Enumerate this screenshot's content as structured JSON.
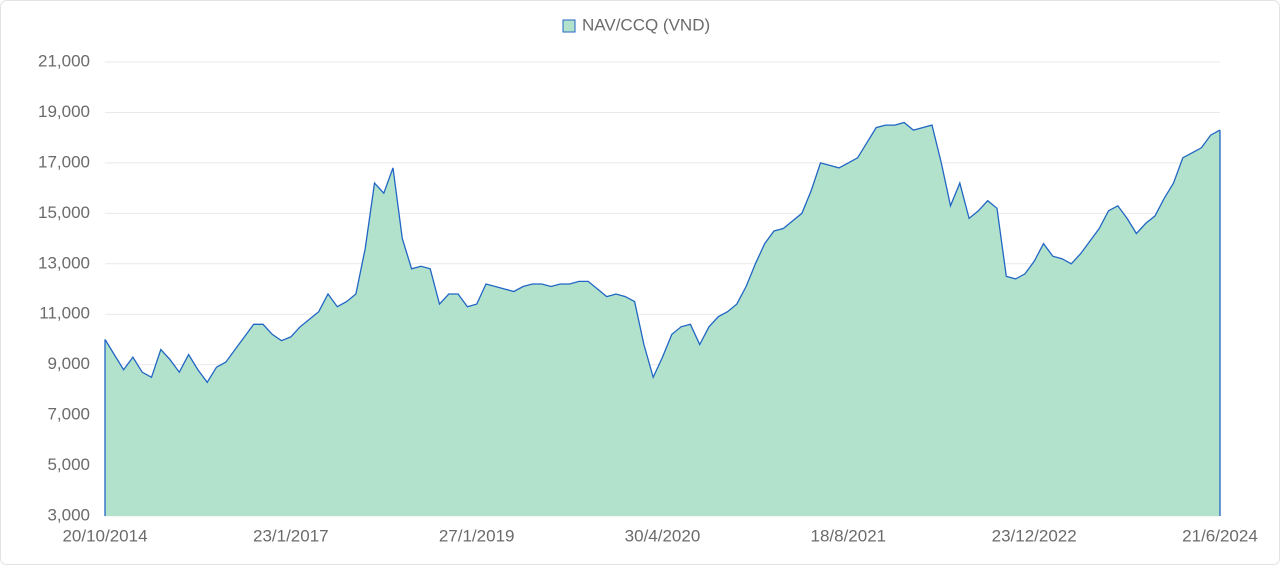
{
  "chart_data": {
    "type": "area",
    "categories": [
      "20/10/2014",
      null,
      null,
      null,
      null,
      null,
      null,
      null,
      null,
      null,
      null,
      null,
      null,
      null,
      null,
      null,
      null,
      null,
      null,
      null,
      "23/1/2017",
      null,
      null,
      null,
      null,
      null,
      null,
      null,
      null,
      null,
      null,
      null,
      null,
      null,
      null,
      null,
      null,
      null,
      null,
      null,
      "27/1/2019",
      null,
      null,
      null,
      null,
      null,
      null,
      null,
      null,
      null,
      null,
      null,
      null,
      null,
      null,
      null,
      null,
      null,
      null,
      null,
      "30/4/2020",
      null,
      null,
      null,
      null,
      null,
      null,
      null,
      null,
      null,
      null,
      null,
      null,
      null,
      null,
      null,
      null,
      null,
      null,
      null,
      "18/8/2021",
      null,
      null,
      null,
      null,
      null,
      null,
      null,
      null,
      null,
      null,
      null,
      null,
      null,
      null,
      null,
      null,
      null,
      null,
      null,
      "23/12/2022",
      null,
      null,
      null,
      null,
      null,
      null,
      null,
      null,
      null,
      null,
      null,
      null,
      null,
      null,
      null,
      null,
      null,
      null,
      null,
      "21/6/2024"
    ],
    "series": [
      {
        "name": "NAV/CCQ (VND)",
        "color": "#2166c4",
        "fill": "#b2e2cc",
        "values": [
          10000,
          9400,
          8800,
          9300,
          8700,
          8500,
          9600,
          9200,
          8700,
          9400,
          8800,
          8300,
          8900,
          9100,
          9600,
          10100,
          10600,
          10600,
          10200,
          9950,
          10100,
          10500,
          10800,
          11100,
          11800,
          11300,
          11500,
          11800,
          13600,
          16200,
          15800,
          16800,
          14000,
          12800,
          12900,
          12800,
          11400,
          11800,
          11800,
          11300,
          11400,
          12200,
          12100,
          12000,
          11900,
          12100,
          12200,
          12200,
          12100,
          12200,
          12200,
          12300,
          12300,
          12000,
          11700,
          11800,
          11700,
          11500,
          9800,
          8500,
          9300,
          10200,
          10500,
          10600,
          9800,
          10500,
          10900,
          11100,
          11400,
          12100,
          13000,
          13800,
          14300,
          14400,
          14700,
          15000,
          15900,
          17000,
          16900,
          16800,
          17000,
          17200,
          17800,
          18400,
          18500,
          18500,
          18600,
          18300,
          18400,
          18500,
          17000,
          15300,
          16200,
          14800,
          15100,
          15500,
          15200,
          12500,
          12400,
          12600,
          13100,
          13800,
          13300,
          13200,
          13000,
          13400,
          13900,
          14400,
          15100,
          15300,
          14800,
          14200,
          14600,
          14900,
          15600,
          16200,
          17200,
          17400,
          17600,
          18100,
          18300
        ]
      }
    ],
    "ylim": [
      3000,
      21000
    ],
    "yticks": [
      {
        "value": 3000,
        "label": "3,000"
      },
      {
        "value": 5000,
        "label": "5,000"
      },
      {
        "value": 7000,
        "label": "7,000"
      },
      {
        "value": 9000,
        "label": "9,000"
      },
      {
        "value": 11000,
        "label": "11,000"
      },
      {
        "value": 13000,
        "label": "13,000"
      },
      {
        "value": 15000,
        "label": "15,000"
      },
      {
        "value": 17000,
        "label": "17,000"
      },
      {
        "value": 19000,
        "label": "19,000"
      },
      {
        "value": 21000,
        "label": "21,000"
      }
    ],
    "grid": true,
    "legend": "top"
  }
}
